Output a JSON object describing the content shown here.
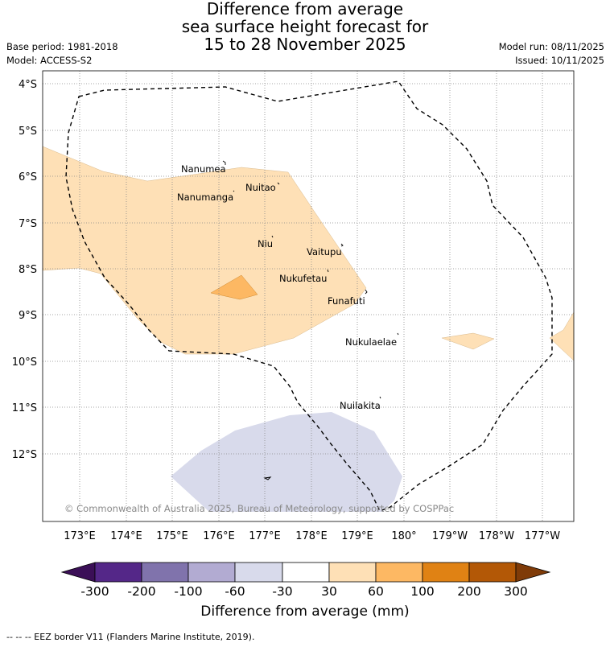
{
  "title_lines": [
    "Difference from average",
    "sea surface height forecast for",
    "15 to 28 November 2025"
  ],
  "base_period": "Base period: 1981-2018",
  "model": "Model: ACCESS-S2",
  "model_run": "Model run: 08/11/2025",
  "issued": "Issued: 10/11/2025",
  "lat_labels": [
    "4°S",
    "5°S",
    "6°S",
    "7°S",
    "8°S",
    "9°S",
    "10°S",
    "11°S",
    "12°S"
  ],
  "lon_labels": [
    "173°E",
    "174°E",
    "175°E",
    "176°E",
    "177°E",
    "178°E",
    "179°E",
    "180°",
    "179°W",
    "178°W",
    "177°W"
  ],
  "islands": [
    {
      "name": "Nanumea"
    },
    {
      "name": "Nuitao"
    },
    {
      "name": "Nanumanga"
    },
    {
      "name": "Niu"
    },
    {
      "name": "Vaitupu"
    },
    {
      "name": "Nukufetau"
    },
    {
      "name": "Funafuti"
    },
    {
      "name": "Nukulaelae"
    },
    {
      "name": "Nuilakita"
    }
  ],
  "copyright": "© Commonwealth of Australia 2025, Bureau of Meteorology, supported by COSPPac",
  "colorbar": {
    "ticks": [
      "-300",
      "-200",
      "-100",
      "-60",
      "-30",
      "30",
      "60",
      "100",
      "200",
      "300"
    ],
    "colors": [
      "#3b0f57",
      "#542788",
      "#8073ac",
      "#b2abd2",
      "#d8daeb",
      "#ffffff",
      "#fee0b6",
      "#fdb863",
      "#e08214",
      "#b35806",
      "#7f3b08"
    ],
    "label": "Difference from average (mm)"
  },
  "footnote": "--  --  -- EEZ border V11 (Flanders Marine Institute, 2019).",
  "colors": {
    "light_orange": "#fee0b6",
    "orange": "#fdb863",
    "light_purple": "#d8daeb",
    "eez_border": "#000000",
    "grid": "#888888"
  }
}
